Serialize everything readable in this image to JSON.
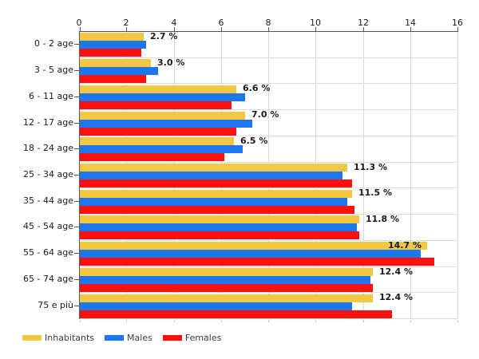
{
  "chart_data": {
    "type": "bar",
    "orientation": "horizontal",
    "title": "",
    "xlabel": "",
    "ylabel": "",
    "unit": "%",
    "categories": [
      "0 - 2 age",
      "3 - 5 age",
      "6 - 11 age",
      "12 - 17 age",
      "18 - 24 age",
      "25 - 34 age",
      "35 - 44 age",
      "45 - 54 age",
      "55 - 64 age",
      "65 - 74 age",
      "75 e più"
    ],
    "series": [
      {
        "name": "Inhabitants",
        "color": "#F0C843",
        "values": [
          2.7,
          3.0,
          6.6,
          7.0,
          6.5,
          11.3,
          11.5,
          11.8,
          14.7,
          12.4,
          12.4
        ]
      },
      {
        "name": "Males",
        "color": "#1E76EC",
        "values": [
          2.8,
          3.3,
          7.0,
          7.3,
          6.9,
          11.1,
          11.3,
          11.7,
          14.4,
          12.3,
          11.5
        ]
      },
      {
        "name": "Females",
        "color": "#FB0F0F",
        "values": [
          2.6,
          2.8,
          6.4,
          6.6,
          6.1,
          11.5,
          11.6,
          11.8,
          15.0,
          12.4,
          13.2
        ]
      }
    ],
    "value_labels": [
      "2.7 %",
      "3.0 %",
      "6.6 %",
      "7.0 %",
      "6.5 %",
      "11.3 %",
      "11.5 %",
      "11.8 %",
      "14.7 %",
      "12.4 %",
      "12.4 %"
    ],
    "xlim": [
      0,
      16
    ],
    "x_ticks": [
      "0",
      "2",
      "4",
      "6",
      "8",
      "10",
      "12",
      "14",
      "16"
    ],
    "grid": true,
    "legend": {
      "position": "bottom-left",
      "items": [
        "Inhabitants",
        "Males",
        "Females"
      ]
    }
  },
  "colors": {
    "background": "#FFFFFF",
    "axis_line": "#555555",
    "gridline": "#DCDCDC",
    "tick_label": "#1A1A1A",
    "value_label": "#1A1A1A",
    "legend_text": "#3A3A4A"
  }
}
